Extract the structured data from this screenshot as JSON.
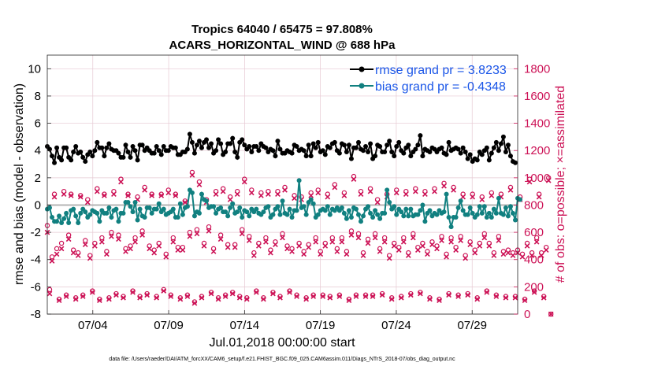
{
  "chart_data": {
    "type": "line",
    "title_line1": "Tropics 64040 / 65475 = 97.808%",
    "title_line2": "ACARS_HORIZONTAL_WIND @ 688 hPa",
    "xlabel": "Jul.01,2018 00:00:00 start",
    "ylabel_left": "rmse and bias (model - observation)",
    "ylabel_right": "# of obs: o=possible; ×=assimilated",
    "footnote": "data file: /Users/raeder/DAI/ATM_forcXX/CAM6_setup/f.e21.FHIST_BGC.f09_025.CAM6assim.011/Diags_NTrS_2018-07/obs_diag_output.nc",
    "xlim": [
      1,
      32
    ],
    "ylim_left": [
      -8,
      11
    ],
    "ylim_right": [
      0,
      1900
    ],
    "x_ticks": [
      {
        "value": 4,
        "label": "07/04"
      },
      {
        "value": 9,
        "label": "07/09"
      },
      {
        "value": 14,
        "label": "07/14"
      },
      {
        "value": 19,
        "label": "07/19"
      },
      {
        "value": 24,
        "label": "07/24"
      },
      {
        "value": 29,
        "label": "07/29"
      }
    ],
    "y_left_ticks": [
      -8,
      -6,
      -4,
      -2,
      0,
      2,
      4,
      6,
      8,
      10
    ],
    "y_right_ticks": [
      0,
      200,
      400,
      600,
      800,
      1000,
      1200,
      1400,
      1600,
      1800
    ],
    "colors": {
      "rmse": "#000000",
      "bias": "#118080",
      "counts": "#cc1155",
      "zero_line": "#b4b4b4",
      "grid": "#e6c8d2",
      "legend_text": "#1a56e8"
    },
    "legend": {
      "position": "top-right",
      "entries": [
        "rmse grand pr = 3.8233",
        "bias grand pr = -0.4348"
      ]
    },
    "series": [
      {
        "name": "rmse",
        "values": [
          4.3,
          4.1,
          3.6,
          3.1,
          4.2,
          3.5,
          3.3,
          4.2,
          4.2,
          3.5,
          3.3,
          3.9,
          4.3,
          3.8,
          3.9,
          3.5,
          3.2,
          3.7,
          3.9,
          3.6,
          4.0,
          4.6,
          4.2,
          4.2,
          3.6,
          4.2,
          4.5,
          4.1,
          4.0,
          4.0,
          3.8,
          3.5,
          3.5,
          4.4,
          3.9,
          3.5,
          4.3,
          4.0,
          3.3,
          4.4,
          4.4,
          4.0,
          4.2,
          4.0,
          3.8,
          3.8,
          4.3,
          4.0,
          3.7,
          4.3,
          4.0,
          4.0,
          4.3,
          4.2,
          4.2,
          3.7,
          3.7,
          3.9,
          3.9,
          4.1,
          5.2,
          4.6,
          3.8,
          4.4,
          4.7,
          4.2,
          4.6,
          4.8,
          4.2,
          4.5,
          3.8,
          4.0,
          4.8,
          4.5,
          3.7,
          3.9,
          4.5,
          4.5,
          4.9,
          3.9,
          3.5,
          4.6,
          4.8,
          4.4,
          4.1,
          4.3,
          3.9,
          4.3,
          4.3,
          4.0,
          4.5,
          4.3,
          4.2,
          3.9,
          4.1,
          4.0,
          3.6,
          4.7,
          4.1,
          3.8,
          3.8,
          4.0,
          3.9,
          3.8,
          4.4,
          4.3,
          4.0,
          4.1,
          4.0,
          3.6,
          4.4,
          3.6,
          4.5,
          4.2,
          4.6,
          3.9,
          4.0,
          3.7,
          4.3,
          4.2,
          4.5,
          4.6,
          4.0,
          3.8,
          4.5,
          4.4,
          3.9,
          4.4,
          3.4,
          4.2,
          4.2,
          4.6,
          4.1,
          4.0,
          4.3,
          3.9,
          4.5,
          3.4,
          3.6,
          4.4,
          4.3,
          3.9,
          3.9,
          4.4,
          4.7,
          3.9,
          3.6,
          4.3,
          4.6,
          4.0,
          3.8,
          4.2,
          4.4,
          3.6,
          3.9,
          4.1,
          4.4,
          5.1,
          3.6,
          4.1,
          4.0,
          3.9,
          4.2,
          4.1,
          3.9,
          4.1,
          4.2,
          3.8,
          3.7,
          4.6,
          4.0,
          4.1,
          4.2,
          4.1,
          3.8,
          4.2,
          3.9,
          3.4,
          3.7,
          3.2,
          3.4,
          3.3,
          3.9,
          3.7,
          4.0,
          4.2,
          3.3,
          3.8,
          4.2,
          4.6,
          4.0,
          4.5,
          5.0,
          3.9,
          4.4,
          3.6,
          3.2,
          3.1
        ]
      },
      {
        "name": "bias",
        "values": [
          -0.3,
          -0.2,
          -0.9,
          -1.2,
          -1.2,
          -0.8,
          -1.3,
          -1.0,
          -0.6,
          -1.3,
          -0.4,
          -0.3,
          -0.8,
          -1.3,
          -0.6,
          -0.3,
          -0.5,
          -0.9,
          -0.7,
          -0.4,
          -0.5,
          -0.6,
          -1.2,
          -0.4,
          -0.6,
          -0.6,
          -0.2,
          -0.9,
          -0.4,
          -0.3,
          -1.2,
          -0.6,
          -0.6,
          0.2,
          0.2,
          -0.1,
          -0.5,
          0.2,
          -1.1,
          -0.3,
          -0.8,
          -0.9,
          -0.2,
          -0.2,
          -0.6,
          -0.3,
          -0.3,
          0.1,
          -0.5,
          -0.3,
          -0.7,
          -0.6,
          -0.5,
          -0.3,
          -0.9,
          -0.9,
          0.1,
          -0.7,
          -0.2,
          -0.1,
          1.1,
          0.9,
          -0.8,
          -0.5,
          -0.6,
          0.8,
          0.4,
          0.3,
          -0.2,
          -0.1,
          -0.1,
          -0.6,
          -0.3,
          -0.2,
          -0.5,
          -0.5,
          -0.8,
          -0.2,
          0.1,
          -0.6,
          -0.5,
          -0.2,
          -0.9,
          -0.4,
          -0.5,
          -0.8,
          -0.3,
          -0.5,
          -0.3,
          -0.6,
          -0.7,
          -0.5,
          -0.2,
          -0.1,
          -0.9,
          -0.7,
          -0.3,
          -0.1,
          -0.7,
          0.3,
          -0.6,
          -0.7,
          -0.3,
          -0.9,
          -0.4,
          -0.4,
          1.8,
          -0.2,
          -0.1,
          -0.7,
          0.2,
          0.4,
          0.1,
          -0.9,
          -0.7,
          -0.4,
          -0.3,
          -0.4,
          -0.1,
          -0.7,
          -0.3,
          -0.4,
          -0.2,
          -0.4,
          -0.2,
          -0.6,
          -1.0,
          -0.4,
          -0.9,
          -0.2,
          -0.3,
          -0.7,
          -1.2,
          -0.8,
          -0.3,
          -0.1,
          -0.6,
          -0.9,
          -0.4,
          -0.7,
          -1.0,
          -0.6,
          -0.6,
          1.1,
          0.2,
          -0.3,
          -0.1,
          -0.7,
          -0.3,
          -0.5,
          -0.8,
          -0.3,
          -0.8,
          -0.3,
          -0.8,
          -0.7,
          -0.7,
          -0.4,
          0.0,
          -1.2,
          -0.6,
          -0.4,
          -0.8,
          -0.6,
          -0.7,
          -0.4,
          -0.6,
          -0.5,
          0.8,
          -0.9,
          -1.6,
          -0.9,
          -0.9,
          -0.2,
          0.3,
          -0.4,
          -0.7,
          -0.7,
          -0.2,
          -0.6,
          -0.9,
          -0.7,
          -0.1,
          -0.6,
          -0.1,
          -0.9,
          -0.6,
          -0.9,
          -0.3,
          -0.6,
          0.5,
          -0.6,
          -0.7,
          -0.2,
          -0.8,
          -0.1,
          -0.6,
          -1.1,
          0.5,
          0.4
        ]
      },
      {
        "name": "obs_possible",
        "values": [
          650,
          180,
          420,
          880,
          480,
          110,
          520,
          900,
          140,
          580,
          880,
          470,
          120,
          450,
          870,
          140,
          540,
          840,
          430,
          170,
          520,
          920,
          110,
          560,
          880,
          460,
          120,
          600,
          900,
          150,
          580,
          990,
          130,
          480,
          880,
          500,
          170,
          560,
          860,
          130,
          610,
          930,
          150,
          500,
          880,
          470,
          130,
          520,
          880,
          180,
          440,
          910,
          140,
          560,
          880,
          490,
          120,
          490,
          830,
          140,
          600,
          1040,
          90,
          620,
          970,
          130,
          520,
          840,
          640,
          160,
          480,
          900,
          120,
          580,
          920,
          140,
          510,
          860,
          160,
          510,
          900,
          130,
          620,
          990,
          120,
          570,
          910,
          450,
          170,
          520,
          890,
          120,
          560,
          900,
          470,
          160,
          530,
          900,
          130,
          590,
          930,
          500,
          170,
          480,
          870,
          140,
          520,
          860,
          460,
          120,
          510,
          890,
          140,
          560,
          910,
          460,
          140,
          520,
          880,
          130,
          560,
          950,
          480,
          140,
          560,
          890,
          460,
          110,
          610,
          1010,
          140,
          590,
          900,
          450,
          140,
          550,
          920,
          140,
          590,
          840,
          480,
          150,
          560,
          880,
          430,
          120,
          520,
          910,
          490,
          130,
          560,
          900,
          450,
          150,
          590,
          920,
          490,
          160,
          520,
          900,
          460,
          120,
          530,
          920,
          500,
          110,
          570,
          960,
          440,
          150,
          560,
          930,
          490,
          140,
          570,
          880,
          430,
          150,
          530,
          880,
          470,
          120,
          520,
          860,
          590,
          170,
          520,
          890,
          450,
          140,
          570,
          880,
          460,
          130,
          470,
          930,
          450,
          130,
          470,
          860,
          440,
          110,
          520,
          990,
          450,
          170,
          560,
          880,
          450,
          130,
          490,
          1000,
          0
        ]
      },
      {
        "name": "obs_assimilated",
        "values": [
          600,
          150,
          390,
          860,
          440,
          100,
          480,
          880,
          130,
          550,
          870,
          450,
          110,
          430,
          860,
          130,
          510,
          820,
          410,
          160,
          500,
          900,
          100,
          530,
          870,
          440,
          110,
          570,
          880,
          140,
          550,
          970,
          120,
          460,
          870,
          480,
          160,
          530,
          840,
          120,
          580,
          910,
          140,
          480,
          870,
          450,
          120,
          500,
          870,
          170,
          420,
          890,
          130,
          530,
          870,
          470,
          110,
          470,
          820,
          130,
          570,
          1020,
          80,
          590,
          950,
          120,
          500,
          820,
          610,
          150,
          460,
          880,
          110,
          550,
          900,
          130,
          490,
          840,
          150,
          490,
          880,
          120,
          590,
          970,
          110,
          540,
          890,
          430,
          160,
          500,
          870,
          110,
          530,
          880,
          450,
          150,
          510,
          880,
          120,
          560,
          910,
          480,
          160,
          460,
          850,
          130,
          500,
          840,
          440,
          110,
          490,
          870,
          130,
          530,
          890,
          440,
          130,
          500,
          860,
          120,
          530,
          930,
          460,
          130,
          530,
          870,
          440,
          100,
          580,
          990,
          130,
          560,
          880,
          430,
          130,
          520,
          900,
          130,
          560,
          820,
          460,
          140,
          530,
          860,
          410,
          110,
          500,
          890,
          470,
          120,
          530,
          880,
          430,
          140,
          560,
          900,
          470,
          150,
          500,
          880,
          440,
          110,
          510,
          900,
          480,
          100,
          540,
          940,
          420,
          140,
          530,
          910,
          470,
          130,
          540,
          860,
          410,
          140,
          510,
          860,
          450,
          110,
          500,
          840,
          560,
          160,
          500,
          870,
          430,
          130,
          540,
          860,
          440,
          120,
          450,
          910,
          430,
          120,
          450,
          840,
          420,
          100,
          500,
          970,
          430,
          160,
          530,
          860,
          430,
          120,
          470,
          980,
          0
        ]
      }
    ]
  }
}
